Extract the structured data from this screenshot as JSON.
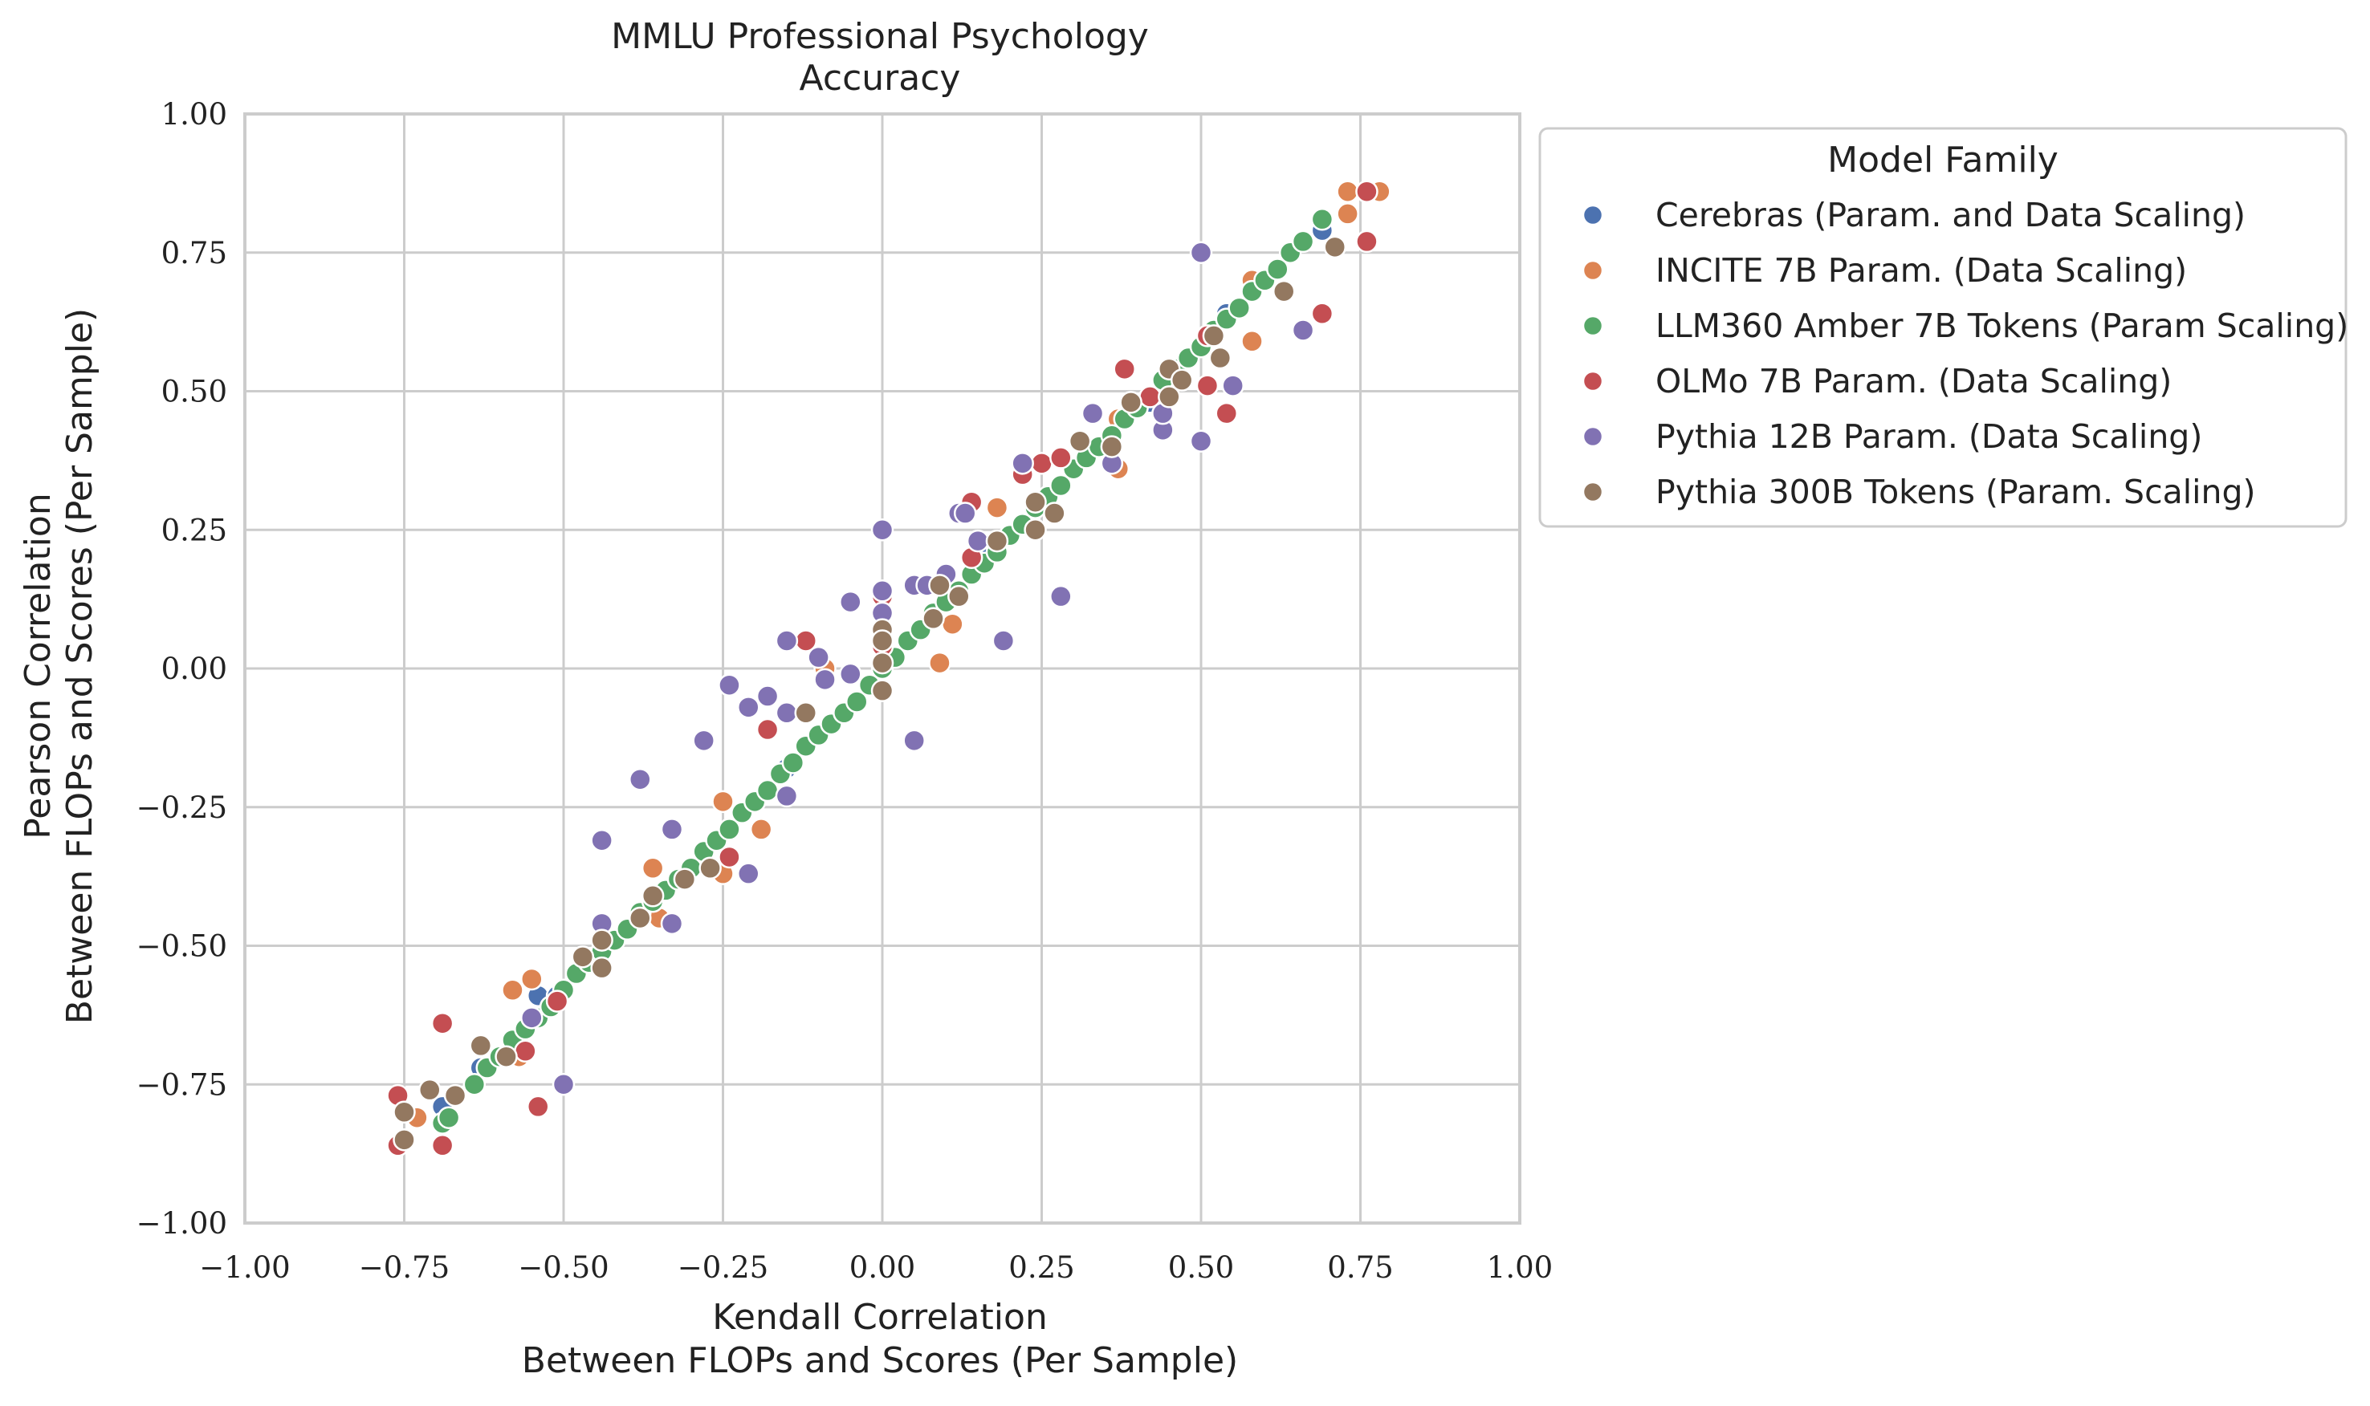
{
  "chart_data": {
    "type": "scatter",
    "title": [
      "MMLU Professional Psychology",
      "Accuracy"
    ],
    "xlabel": [
      "Kendall Correlation",
      "Between FLOPs and Scores (Per Sample)"
    ],
    "ylabel": [
      "Pearson Correlation",
      "Between FLOPs and Scores (Per Sample)"
    ],
    "xlim": [
      -1.0,
      1.0
    ],
    "ylim": [
      -1.0,
      1.0
    ],
    "xticks": [
      -1.0,
      -0.75,
      -0.5,
      -0.25,
      0.0,
      0.25,
      0.5,
      0.75,
      1.0
    ],
    "yticks": [
      -1.0,
      -0.75,
      -0.5,
      -0.25,
      0.0,
      0.25,
      0.5,
      0.75,
      1.0
    ],
    "xtick_labels": [
      "−1.00",
      "−0.75",
      "−0.50",
      "−0.25",
      "0.00",
      "0.25",
      "0.50",
      "0.75",
      "1.00"
    ],
    "ytick_labels": [
      "−1.00",
      "−0.75",
      "−0.50",
      "−0.25",
      "0.00",
      "0.25",
      "0.50",
      "0.75",
      "1.00"
    ],
    "grid": true,
    "legend": {
      "title": "Model Family",
      "placement": "outside-right-top"
    },
    "series": [
      {
        "name": "Cerebras (Param. and Data Scaling)",
        "color": "#4c72b0",
        "points": [
          [
            -0.69,
            -0.79
          ],
          [
            -0.63,
            -0.72
          ],
          [
            -0.54,
            -0.59
          ],
          [
            -0.51,
            -0.59
          ],
          [
            -0.36,
            -0.41
          ],
          [
            -0.15,
            -0.18
          ],
          [
            0.17,
            0.22
          ],
          [
            0.34,
            0.4
          ],
          [
            0.42,
            0.48
          ],
          [
            0.52,
            0.6
          ],
          [
            0.54,
            0.64
          ],
          [
            0.69,
            0.79
          ]
        ]
      },
      {
        "name": "INCITE 7B Param. (Data Scaling)",
        "color": "#dd8452",
        "points": [
          [
            -0.75,
            -0.85
          ],
          [
            -0.73,
            -0.81
          ],
          [
            -0.58,
            -0.58
          ],
          [
            -0.55,
            -0.56
          ],
          [
            -0.57,
            -0.7
          ],
          [
            -0.36,
            -0.36
          ],
          [
            -0.35,
            -0.45
          ],
          [
            -0.25,
            -0.24
          ],
          [
            -0.25,
            -0.37
          ],
          [
            -0.19,
            -0.29
          ],
          [
            -0.09,
            0.0
          ],
          [
            0.09,
            0.01
          ],
          [
            0.11,
            0.08
          ],
          [
            0.18,
            0.29
          ],
          [
            0.37,
            0.45
          ],
          [
            0.37,
            0.36
          ],
          [
            0.58,
            0.7
          ],
          [
            0.58,
            0.59
          ],
          [
            0.73,
            0.82
          ],
          [
            0.73,
            0.86
          ],
          [
            0.78,
            0.86
          ]
        ]
      },
      {
        "name": "LLM360 Amber 7B Tokens (Param Scaling)",
        "color": "#55a868",
        "points": [
          [
            -0.69,
            -0.82
          ],
          [
            -0.68,
            -0.81
          ],
          [
            -0.64,
            -0.75
          ],
          [
            -0.62,
            -0.72
          ],
          [
            -0.6,
            -0.7
          ],
          [
            -0.58,
            -0.67
          ],
          [
            -0.56,
            -0.65
          ],
          [
            -0.54,
            -0.63
          ],
          [
            -0.52,
            -0.61
          ],
          [
            -0.5,
            -0.58
          ],
          [
            -0.48,
            -0.55
          ],
          [
            -0.46,
            -0.53
          ],
          [
            -0.44,
            -0.51
          ],
          [
            -0.42,
            -0.49
          ],
          [
            -0.4,
            -0.47
          ],
          [
            -0.38,
            -0.44
          ],
          [
            -0.36,
            -0.42
          ],
          [
            -0.34,
            -0.4
          ],
          [
            -0.32,
            -0.38
          ],
          [
            -0.3,
            -0.36
          ],
          [
            -0.28,
            -0.33
          ],
          [
            -0.26,
            -0.31
          ],
          [
            -0.24,
            -0.29
          ],
          [
            -0.22,
            -0.26
          ],
          [
            -0.2,
            -0.24
          ],
          [
            -0.18,
            -0.22
          ],
          [
            -0.16,
            -0.19
          ],
          [
            -0.14,
            -0.17
          ],
          [
            -0.12,
            -0.14
          ],
          [
            -0.1,
            -0.12
          ],
          [
            -0.08,
            -0.1
          ],
          [
            -0.06,
            -0.08
          ],
          [
            -0.04,
            -0.06
          ],
          [
            -0.02,
            -0.03
          ],
          [
            0.0,
            0.0
          ],
          [
            0.02,
            0.02
          ],
          [
            0.04,
            0.05
          ],
          [
            0.06,
            0.07
          ],
          [
            0.08,
            0.1
          ],
          [
            0.1,
            0.12
          ],
          [
            0.12,
            0.14
          ],
          [
            0.14,
            0.17
          ],
          [
            0.16,
            0.19
          ],
          [
            0.18,
            0.21
          ],
          [
            0.2,
            0.24
          ],
          [
            0.22,
            0.26
          ],
          [
            0.24,
            0.29
          ],
          [
            0.26,
            0.31
          ],
          [
            0.28,
            0.33
          ],
          [
            0.3,
            0.36
          ],
          [
            0.32,
            0.38
          ],
          [
            0.34,
            0.4
          ],
          [
            0.36,
            0.42
          ],
          [
            0.38,
            0.45
          ],
          [
            0.4,
            0.47
          ],
          [
            0.42,
            0.49
          ],
          [
            0.44,
            0.52
          ],
          [
            0.46,
            0.54
          ],
          [
            0.48,
            0.56
          ],
          [
            0.5,
            0.58
          ],
          [
            0.52,
            0.61
          ],
          [
            0.54,
            0.63
          ],
          [
            0.56,
            0.65
          ],
          [
            0.58,
            0.68
          ],
          [
            0.6,
            0.7
          ],
          [
            0.62,
            0.72
          ],
          [
            0.64,
            0.75
          ],
          [
            0.66,
            0.77
          ],
          [
            0.69,
            0.81
          ]
        ]
      },
      {
        "name": "OLMo 7B Param. (Data Scaling)",
        "color": "#c44e52",
        "points": [
          [
            -0.76,
            -0.86
          ],
          [
            -0.76,
            -0.77
          ],
          [
            -0.69,
            -0.64
          ],
          [
            -0.69,
            -0.86
          ],
          [
            -0.56,
            -0.69
          ],
          [
            -0.54,
            -0.79
          ],
          [
            -0.51,
            -0.6
          ],
          [
            -0.24,
            -0.34
          ],
          [
            -0.18,
            -0.11
          ],
          [
            -0.12,
            0.05
          ],
          [
            0.0,
            0.13
          ],
          [
            0.0,
            0.04
          ],
          [
            0.14,
            0.3
          ],
          [
            0.14,
            0.2
          ],
          [
            0.22,
            0.35
          ],
          [
            0.25,
            0.37
          ],
          [
            0.28,
            0.38
          ],
          [
            0.38,
            0.54
          ],
          [
            0.42,
            0.49
          ],
          [
            0.51,
            0.6
          ],
          [
            0.51,
            0.51
          ],
          [
            0.54,
            0.46
          ],
          [
            0.69,
            0.64
          ],
          [
            0.76,
            0.86
          ],
          [
            0.76,
            0.77
          ]
        ]
      },
      {
        "name": "Pythia 12B Param. (Data Scaling)",
        "color": "#8172b3",
        "points": [
          [
            -0.55,
            -0.63
          ],
          [
            -0.5,
            -0.75
          ],
          [
            -0.44,
            -0.46
          ],
          [
            -0.44,
            -0.31
          ],
          [
            -0.38,
            -0.2
          ],
          [
            -0.33,
            -0.29
          ],
          [
            -0.33,
            -0.46
          ],
          [
            -0.28,
            -0.13
          ],
          [
            -0.24,
            -0.03
          ],
          [
            -0.21,
            -0.37
          ],
          [
            -0.21,
            -0.07
          ],
          [
            -0.18,
            -0.05
          ],
          [
            -0.15,
            0.05
          ],
          [
            -0.15,
            -0.08
          ],
          [
            -0.15,
            -0.23
          ],
          [
            -0.1,
            0.02
          ],
          [
            -0.09,
            -0.02
          ],
          [
            -0.05,
            0.12
          ],
          [
            -0.05,
            -0.01
          ],
          [
            0.0,
            0.25
          ],
          [
            0.0,
            0.14
          ],
          [
            0.0,
            0.1
          ],
          [
            0.05,
            0.15
          ],
          [
            0.05,
            -0.13
          ],
          [
            0.07,
            0.15
          ],
          [
            0.1,
            0.17
          ],
          [
            0.12,
            0.28
          ],
          [
            0.13,
            0.28
          ],
          [
            0.15,
            0.23
          ],
          [
            0.19,
            0.05
          ],
          [
            0.22,
            0.37
          ],
          [
            0.28,
            0.13
          ],
          [
            0.33,
            0.46
          ],
          [
            0.36,
            0.37
          ],
          [
            0.44,
            0.43
          ],
          [
            0.44,
            0.46
          ],
          [
            0.5,
            0.75
          ],
          [
            0.5,
            0.41
          ],
          [
            0.55,
            0.51
          ],
          [
            0.66,
            0.61
          ]
        ]
      },
      {
        "name": "Pythia 300B Tokens (Param. Scaling)",
        "color": "#937860",
        "points": [
          [
            -0.75,
            -0.85
          ],
          [
            -0.75,
            -0.8
          ],
          [
            -0.71,
            -0.76
          ],
          [
            -0.67,
            -0.77
          ],
          [
            -0.63,
            -0.68
          ],
          [
            -0.59,
            -0.7
          ],
          [
            -0.47,
            -0.52
          ],
          [
            -0.44,
            -0.54
          ],
          [
            -0.44,
            -0.49
          ],
          [
            -0.38,
            -0.45
          ],
          [
            -0.36,
            -0.41
          ],
          [
            -0.31,
            -0.38
          ],
          [
            -0.27,
            -0.36
          ],
          [
            -0.12,
            -0.08
          ],
          [
            0.0,
            0.07
          ],
          [
            0.0,
            0.05
          ],
          [
            0.0,
            0.01
          ],
          [
            0.0,
            -0.04
          ],
          [
            0.08,
            0.09
          ],
          [
            0.09,
            0.15
          ],
          [
            0.12,
            0.13
          ],
          [
            0.18,
            0.23
          ],
          [
            0.24,
            0.3
          ],
          [
            0.24,
            0.25
          ],
          [
            0.27,
            0.28
          ],
          [
            0.31,
            0.41
          ],
          [
            0.36,
            0.4
          ],
          [
            0.39,
            0.48
          ],
          [
            0.45,
            0.54
          ],
          [
            0.45,
            0.49
          ],
          [
            0.47,
            0.52
          ],
          [
            0.52,
            0.6
          ],
          [
            0.53,
            0.56
          ],
          [
            0.63,
            0.68
          ],
          [
            0.71,
            0.76
          ]
        ]
      }
    ]
  }
}
